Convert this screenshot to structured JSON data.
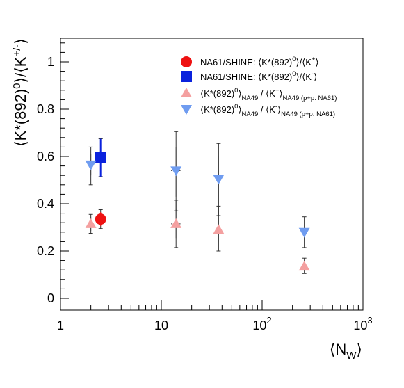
{
  "chart_data": {
    "type": "scatter",
    "xscale": "log",
    "xlim": [
      1,
      1000
    ],
    "ylim": [
      -0.05,
      1.1
    ],
    "xlabel": {
      "text": "⟨N",
      "sub": "W",
      "close": "⟩"
    },
    "ylabel": {
      "a": "⟨K*(892)",
      "sup": "0",
      "b": "⟩/⟨K",
      "sup2": "+/-",
      "c": "⟩"
    },
    "x_ticks": [
      {
        "value": 1,
        "label": "1"
      },
      {
        "value": 10,
        "label": "10"
      },
      {
        "value": 100,
        "label": "10",
        "sup": "2"
      },
      {
        "value": 1000,
        "label": "10",
        "sup": "3"
      }
    ],
    "y_ticks": [
      {
        "value": 0,
        "label": "0"
      },
      {
        "value": 0.2,
        "label": "0.2"
      },
      {
        "value": 0.4,
        "label": "0.4"
      },
      {
        "value": 0.6,
        "label": "0.6"
      },
      {
        "value": 0.8,
        "label": "0.8"
      },
      {
        "value": 1,
        "label": "1"
      }
    ],
    "series": [
      {
        "marker": "circle",
        "color": "#ee1111",
        "points": [
          {
            "x": 2.5,
            "y": 0.335,
            "stat_lo": 0.305,
            "stat_hi": 0.365,
            "sys_lo": 0.295,
            "sys_hi": 0.375,
            "xerr_lo": 2.5,
            "xerr_hi": 2.5
          }
        ],
        "legend": {
          "prefix": "NA61/SHINE: ⟨K*(892)",
          "sup": "0",
          "mid": "⟩/⟨K",
          "sup2": "+",
          "end": "⟩"
        }
      },
      {
        "marker": "square",
        "color": "#0a22dd",
        "points": [
          {
            "x": 2.5,
            "y": 0.595,
            "stat_lo": 0.515,
            "stat_hi": 0.675,
            "sys_lo": 0.515,
            "sys_hi": 0.675,
            "xerr_lo": 2.5,
            "xerr_hi": 2.5
          }
        ],
        "legend": {
          "prefix": "NA61/SHINE: ⟨K*(892)",
          "sup": "0",
          "mid": "⟩/⟨K",
          "sup2": "-",
          "end": "⟩"
        }
      },
      {
        "marker": "triangle-up",
        "color": "#f4a0a0",
        "points": [
          {
            "x": 2,
            "y": 0.315,
            "stat_lo": 0.285,
            "stat_hi": 0.345,
            "sys_lo": 0.275,
            "sys_hi": 0.355,
            "xerr_lo": 2,
            "xerr_hi": 2
          },
          {
            "x": 14,
            "y": 0.315,
            "stat_lo": 0.255,
            "stat_hi": 0.375,
            "sys_lo": 0.215,
            "sys_hi": 0.415,
            "xerr_lo": 12.5,
            "xerr_hi": 15.5
          },
          {
            "x": 37,
            "y": 0.29,
            "stat_lo": 0.24,
            "stat_hi": 0.34,
            "sys_lo": 0.2,
            "sys_hi": 0.39,
            "xerr_lo": 35,
            "xerr_hi": 39
          },
          {
            "x": 262,
            "y": 0.135,
            "stat_lo": 0.115,
            "stat_hi": 0.155,
            "sys_lo": 0.105,
            "sys_hi": 0.17,
            "xerr_lo": 262,
            "xerr_hi": 262
          }
        ],
        "legend": {
          "prefix": "⟨K*(892)",
          "sup": "0",
          "mid": "⟩",
          "sub": "NA49",
          "mid2": " / ⟨K",
          "sup2": "+",
          "end": "⟩",
          "sub2": "NA49 (p+p: NA61)"
        }
      },
      {
        "marker": "triangle-down",
        "color": "#6f9cf0",
        "points": [
          {
            "x": 2,
            "y": 0.565,
            "stat_lo": 0.52,
            "stat_hi": 0.61,
            "sys_lo": 0.48,
            "sys_hi": 0.64,
            "xerr_lo": 2,
            "xerr_hi": 2
          },
          {
            "x": 14,
            "y": 0.54,
            "stat_lo": 0.43,
            "stat_hi": 0.64,
            "sys_lo": 0.37,
            "sys_hi": 0.705,
            "xerr_lo": 12.5,
            "xerr_hi": 15.5
          },
          {
            "x": 37,
            "y": 0.505,
            "stat_lo": 0.4,
            "stat_hi": 0.6,
            "sys_lo": 0.35,
            "sys_hi": 0.655,
            "xerr_lo": 35,
            "xerr_hi": 39
          },
          {
            "x": 262,
            "y": 0.28,
            "stat_lo": 0.22,
            "stat_hi": 0.34,
            "sys_lo": 0.215,
            "sys_hi": 0.345,
            "xerr_lo": 262,
            "xerr_hi": 262
          }
        ],
        "legend": {
          "prefix": "⟨K*(892)",
          "sup": "0",
          "mid": "⟩",
          "sub": "NA49",
          "mid2": " / ⟨K",
          "sup2": "-",
          "end": "⟩",
          "sub2": "NA49 (p+p: NA61)"
        }
      }
    ],
    "grid": false,
    "legend_position": "top-right"
  }
}
